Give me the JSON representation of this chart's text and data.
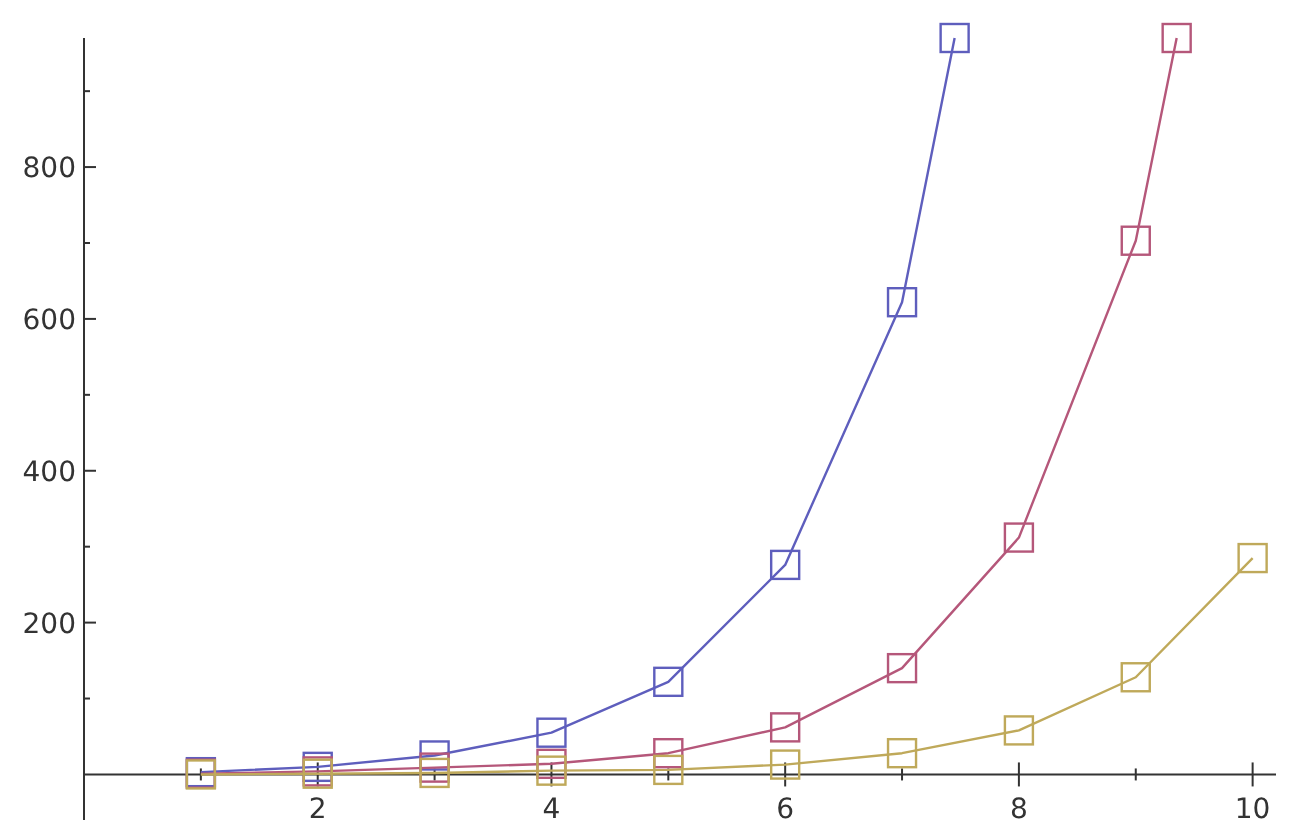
{
  "chart_data": {
    "type": "line",
    "x": [
      1,
      2,
      3,
      4,
      5,
      6,
      7,
      8,
      9,
      10
    ],
    "xlim": [
      0,
      10.2
    ],
    "ylim": [
      -60,
      970
    ],
    "xticks": [
      {
        "value": 1,
        "label": null
      },
      2,
      {
        "value": 3,
        "label": null
      },
      4,
      {
        "value": 5,
        "label": null
      },
      6,
      {
        "value": 7,
        "label": null
      },
      8,
      {
        "value": 9,
        "label": null
      },
      10
    ],
    "yticks": [
      {
        "value": 100,
        "label": null
      },
      200,
      {
        "value": 300,
        "label": null
      },
      400,
      {
        "value": 500,
        "label": null
      },
      600,
      {
        "value": 700,
        "label": null
      },
      800,
      {
        "value": 900,
        "label": null
      }
    ],
    "marker": "square",
    "line_style": "solid",
    "grid": false,
    "series": [
      {
        "color": "#5e5ebd",
        "x": [
          1,
          2,
          3,
          4,
          5,
          6,
          7,
          7.45
        ],
        "values": [
          3,
          10,
          25,
          55,
          122,
          276,
          622,
          970
        ]
      },
      {
        "color": "#b5577a",
        "x": [
          1,
          2,
          3,
          4,
          5,
          6,
          7,
          8,
          9,
          9.35
        ],
        "values": [
          1,
          4,
          9,
          14,
          28,
          62,
          140,
          312,
          703,
          970
        ]
      },
      {
        "color": "#bfa95a",
        "values": [
          0,
          1,
          2,
          5,
          6,
          13,
          28,
          58,
          128,
          285
        ]
      }
    ]
  }
}
